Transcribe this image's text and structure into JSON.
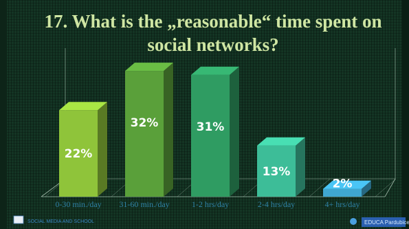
{
  "chart_data": {
    "type": "bar",
    "title": "17. What is the „reasonable“ time spent on social networks?",
    "title_lines": [
      "17. What is the „reasonable“ time spent on",
      "social networks?"
    ],
    "categories": [
      "0-30 min./day",
      "31-60 min./day",
      "1-2 hrs/day",
      "2-4 hrs/day",
      "4+ hrs/day"
    ],
    "values": [
      22,
      32,
      31,
      13,
      2
    ],
    "value_labels": [
      "22%",
      "32%",
      "31%",
      "13%",
      "2%"
    ],
    "ylim": [
      0,
      35
    ],
    "xlabel": "",
    "ylabel": "",
    "grid": false,
    "legend": "none",
    "bar_colors": [
      "#8fc43a",
      "#5aa03a",
      "#2f9c62",
      "#3dbd98",
      "#3fa7d0"
    ]
  },
  "footer": {
    "left_text": "SOCIAL MEDIA AND SCHOOL",
    "right_text": "EDUCA Pardubice"
  },
  "colors": {
    "title": "#cfe6a3",
    "category_label": "#2f82a6",
    "background": "#143524"
  }
}
